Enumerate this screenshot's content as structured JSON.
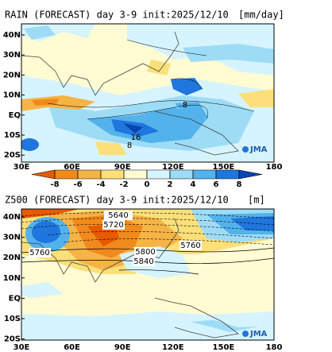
{
  "rain_panel": {
    "title": "RAIN (FORECAST) day 3-9 init:2025/12/10",
    "unit": "[mm/day]",
    "lat_labels": [
      "40N",
      "30N",
      "20N",
      "10N",
      "EQ",
      "10S",
      "20S"
    ],
    "lon_labels": [
      "30E",
      "60E",
      "90E",
      "120E",
      "150E",
      "180"
    ],
    "contour_labels": [
      "16",
      "8",
      "8"
    ],
    "logo": "JMA",
    "colorbar": {
      "ticks": [
        -8,
        -6,
        -4,
        -2,
        0,
        2,
        4,
        6,
        8
      ],
      "colors": [
        "#e65a00",
        "#f08a1c",
        "#f6b446",
        "#fbe07a",
        "#fffbd2",
        "#d6f4ff",
        "#9edcf6",
        "#52b2ec",
        "#1f76dc",
        "#0a44b0"
      ]
    }
  },
  "z500_panel": {
    "title": "Z500 (FORECAST) day 3-9 init:2025/12/10",
    "unit": "[m]",
    "lat_labels": [
      "40N",
      "30N",
      "20N",
      "10N",
      "EQ",
      "10S",
      "20S"
    ],
    "lon_labels": [
      "30E",
      "60E",
      "90E",
      "120E",
      "150E",
      "180"
    ],
    "contour_labels": [
      "5640",
      "5720",
      "5760",
      "5800",
      "5840",
      "5760"
    ],
    "logo": "JMA"
  }
}
